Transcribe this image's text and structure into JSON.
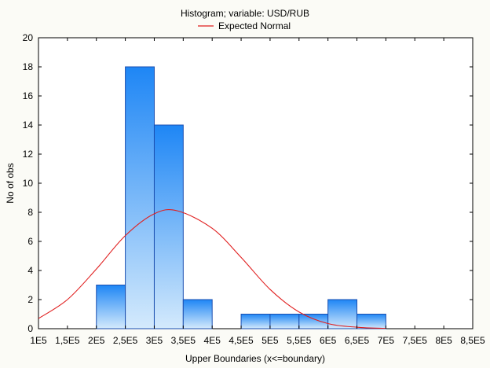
{
  "chart_data": {
    "type": "bar",
    "title": "Histogram; variable: USD/RUB",
    "legend": {
      "position": "top-center",
      "entries": [
        "Expected Normal"
      ]
    },
    "xlabel": "Upper Boundaries (x<=boundary)",
    "ylabel": "No of obs",
    "xlim": [
      100000,
      850000
    ],
    "ylim": [
      0,
      20
    ],
    "x_ticks": [
      {
        "value": 100000,
        "label": "1E5"
      },
      {
        "value": 150000,
        "label": "1,5E5"
      },
      {
        "value": 200000,
        "label": "2E5"
      },
      {
        "value": 250000,
        "label": "2,5E5"
      },
      {
        "value": 300000,
        "label": "3E5"
      },
      {
        "value": 350000,
        "label": "3,5E5"
      },
      {
        "value": 400000,
        "label": "4E5"
      },
      {
        "value": 450000,
        "label": "4,5E5"
      },
      {
        "value": 500000,
        "label": "5E5"
      },
      {
        "value": 550000,
        "label": "5,5E5"
      },
      {
        "value": 600000,
        "label": "6E5"
      },
      {
        "value": 650000,
        "label": "6,5E5"
      },
      {
        "value": 700000,
        "label": "7E5"
      },
      {
        "value": 750000,
        "label": "7,5E5"
      },
      {
        "value": 800000,
        "label": "8E5"
      },
      {
        "value": 850000,
        "label": "8,5E5"
      }
    ],
    "y_ticks": [
      0,
      2,
      4,
      6,
      8,
      10,
      12,
      14,
      16,
      18,
      20
    ],
    "bins": [
      {
        "from": 200000,
        "to": 250000,
        "count": 3
      },
      {
        "from": 250000,
        "to": 300000,
        "count": 18
      },
      {
        "from": 300000,
        "to": 350000,
        "count": 14
      },
      {
        "from": 350000,
        "to": 400000,
        "count": 2
      },
      {
        "from": 450000,
        "to": 500000,
        "count": 1
      },
      {
        "from": 500000,
        "to": 550000,
        "count": 1
      },
      {
        "from": 550000,
        "to": 600000,
        "count": 1
      },
      {
        "from": 600000,
        "to": 650000,
        "count": 2
      },
      {
        "from": 650000,
        "to": 700000,
        "count": 1
      }
    ],
    "expected_normal": {
      "name": "Expected Normal",
      "x": [
        100000,
        150000,
        200000,
        250000,
        300000,
        340000,
        400000,
        450000,
        500000,
        550000,
        600000,
        650000,
        700000
      ],
      "y": [
        0.7,
        2.0,
        4.1,
        6.4,
        7.9,
        8.1,
        6.9,
        4.9,
        2.7,
        1.15,
        0.35,
        0.1,
        0.02
      ]
    },
    "colors": {
      "bar_top": "#1e86f5",
      "bar_bottom": "#d4eafc",
      "bar_stroke": "#1b4fb0",
      "curve": "#e01e1e",
      "plot_bg": "#ffffff",
      "page_bg": "#fbfbf6"
    },
    "grid": false
  }
}
